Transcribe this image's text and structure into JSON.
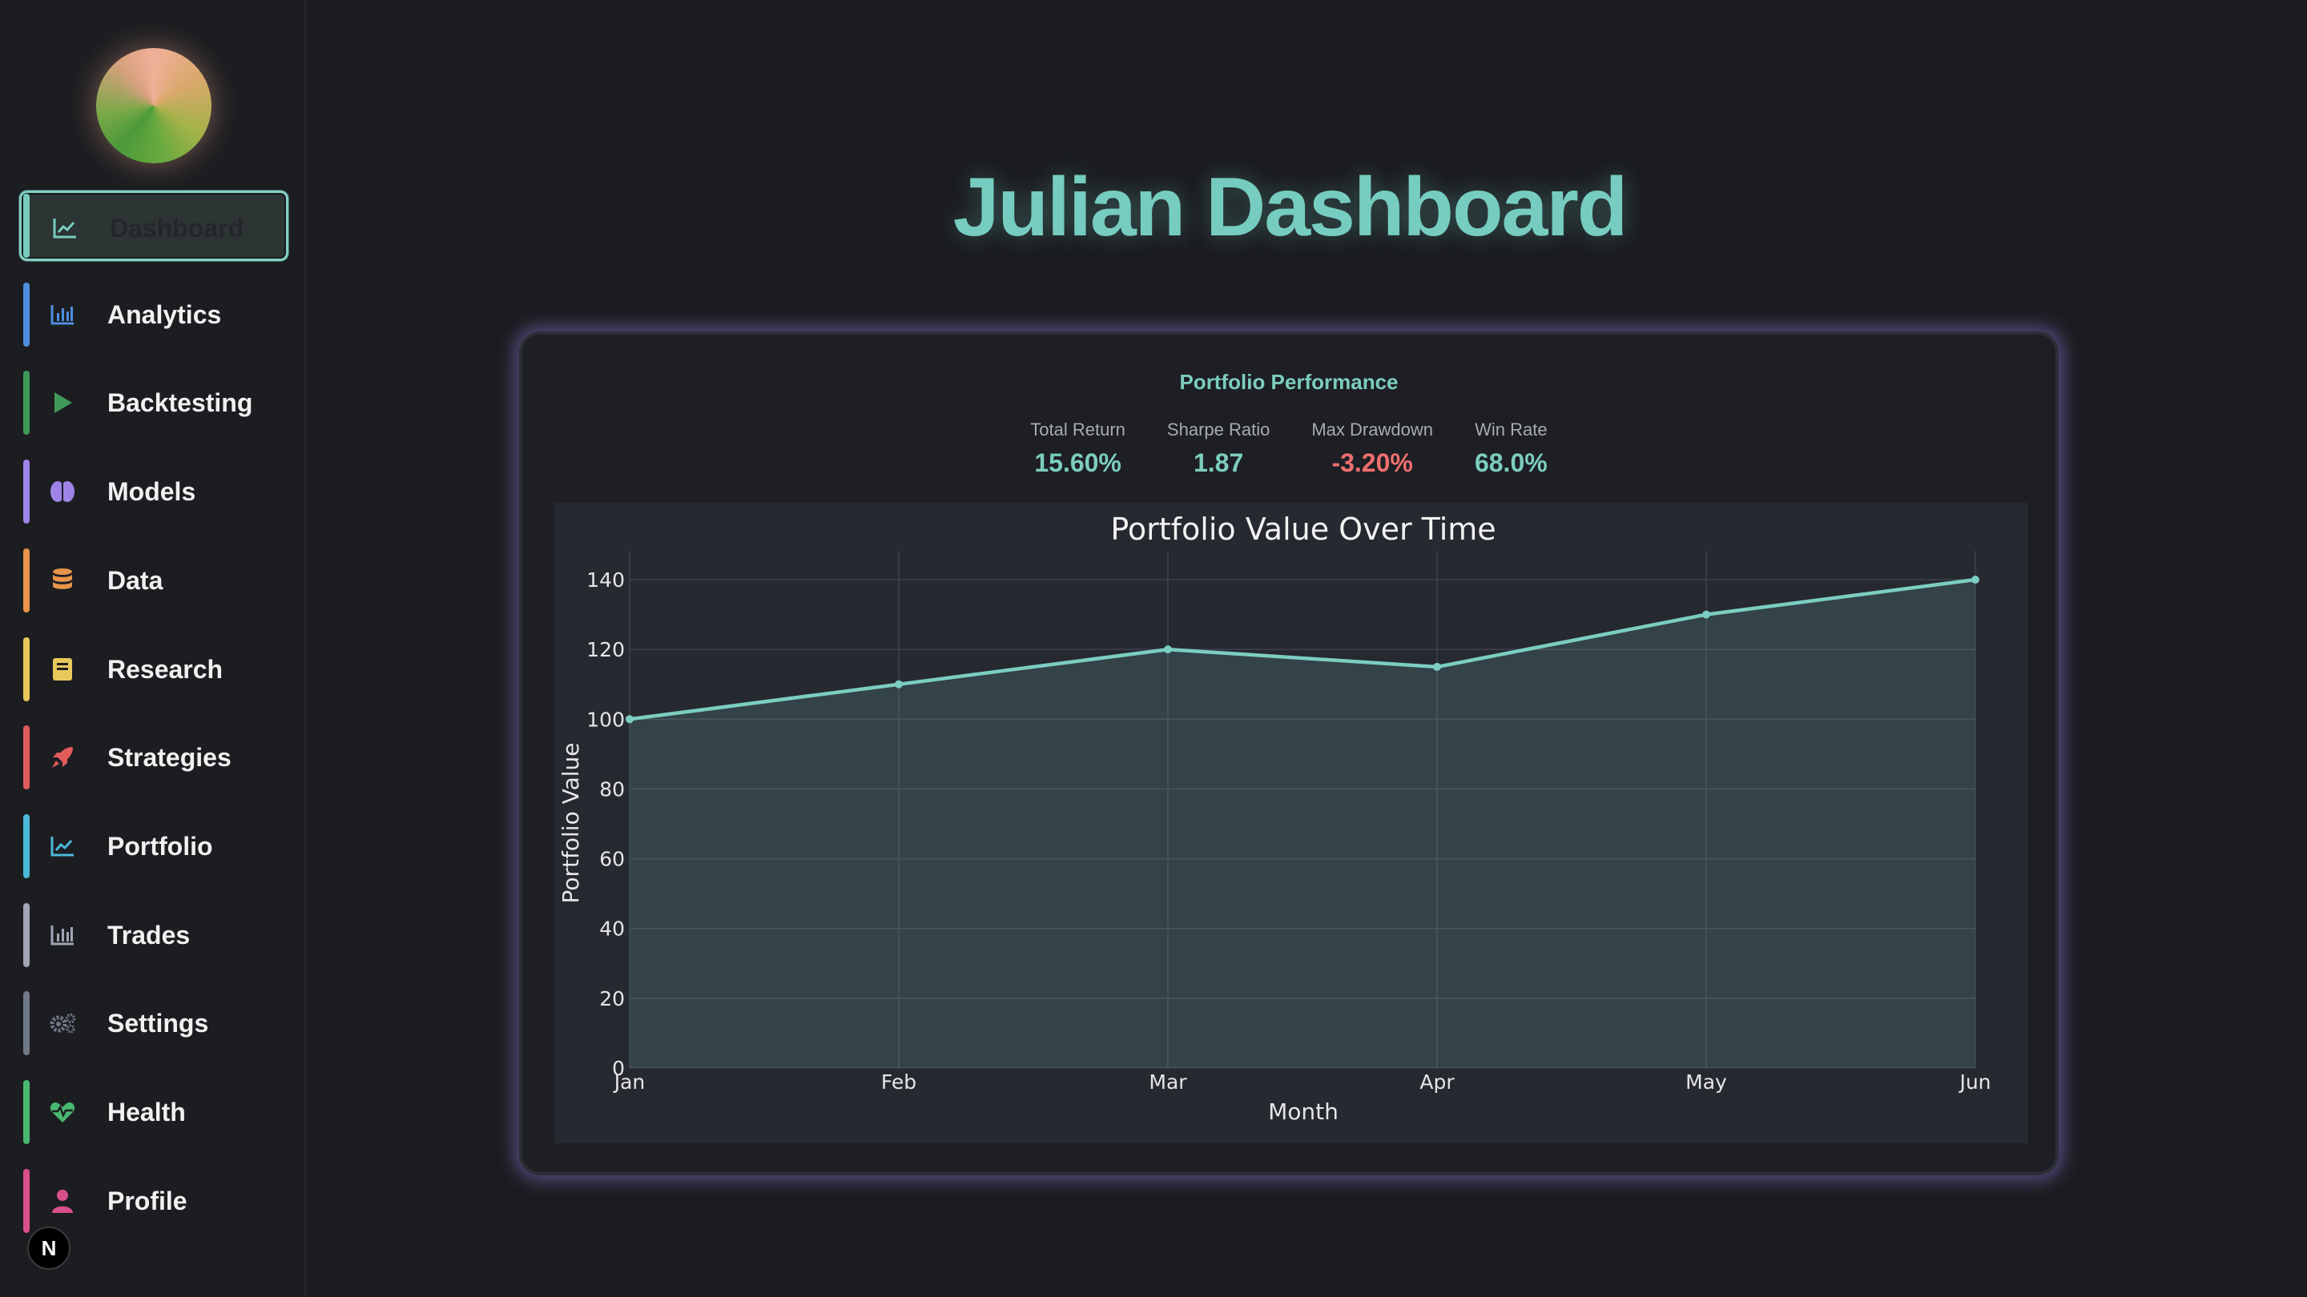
{
  "sidebar": {
    "items": [
      {
        "label": "Dashboard",
        "color": "#76cdbf",
        "icon": "line-chart-icon",
        "active": true
      },
      {
        "label": "Analytics",
        "color": "#4f8fe0",
        "icon": "bar-chart-icon"
      },
      {
        "label": "Backtesting",
        "color": "#3f9a5a",
        "icon": "play-icon"
      },
      {
        "label": "Models",
        "color": "#9f84e8",
        "icon": "brain-icon"
      },
      {
        "label": "Data",
        "color": "#e8944a",
        "icon": "database-icon"
      },
      {
        "label": "Research",
        "color": "#e8c85a",
        "icon": "book-icon"
      },
      {
        "label": "Strategies",
        "color": "#e25b5b",
        "icon": "rocket-icon"
      },
      {
        "label": "Portfolio",
        "color": "#4ab8d8",
        "icon": "line-chart-icon"
      },
      {
        "label": "Trades",
        "color": "#a0a6b4",
        "icon": "bar-chart-icon"
      },
      {
        "label": "Settings",
        "color": "#717888",
        "icon": "gears-icon"
      },
      {
        "label": "Health",
        "color": "#48b870",
        "icon": "heart-pulse-icon"
      },
      {
        "label": "Profile",
        "color": "#d8508a",
        "icon": "user-icon"
      }
    ],
    "badge": "N"
  },
  "header": {
    "title": "Julian Dashboard"
  },
  "card": {
    "title": "Portfolio Performance",
    "metrics": [
      {
        "label": "Total Return",
        "value": "15.60%",
        "color": "#7ccdbd"
      },
      {
        "label": "Sharpe Ratio",
        "value": "1.87",
        "color": "#7ccdbd"
      },
      {
        "label": "Max Drawdown",
        "value": "-3.20%",
        "color": "#ef6f6f"
      },
      {
        "label": "Win Rate",
        "value": "68.0%",
        "color": "#7ccdbd"
      }
    ]
  },
  "chart_data": {
    "type": "area",
    "title": "Portfolio Value Over Time",
    "xlabel": "Month",
    "ylabel": "Portfolio Value",
    "categories": [
      "Jan",
      "Feb",
      "Mar",
      "Apr",
      "May",
      "Jun"
    ],
    "values": [
      100,
      110,
      120,
      115,
      130,
      140
    ],
    "ylim": [
      0,
      140
    ],
    "yticks": [
      0,
      20,
      40,
      60,
      80,
      100,
      120,
      140
    ],
    "grid": true,
    "line_color": "#7ccdc2"
  }
}
